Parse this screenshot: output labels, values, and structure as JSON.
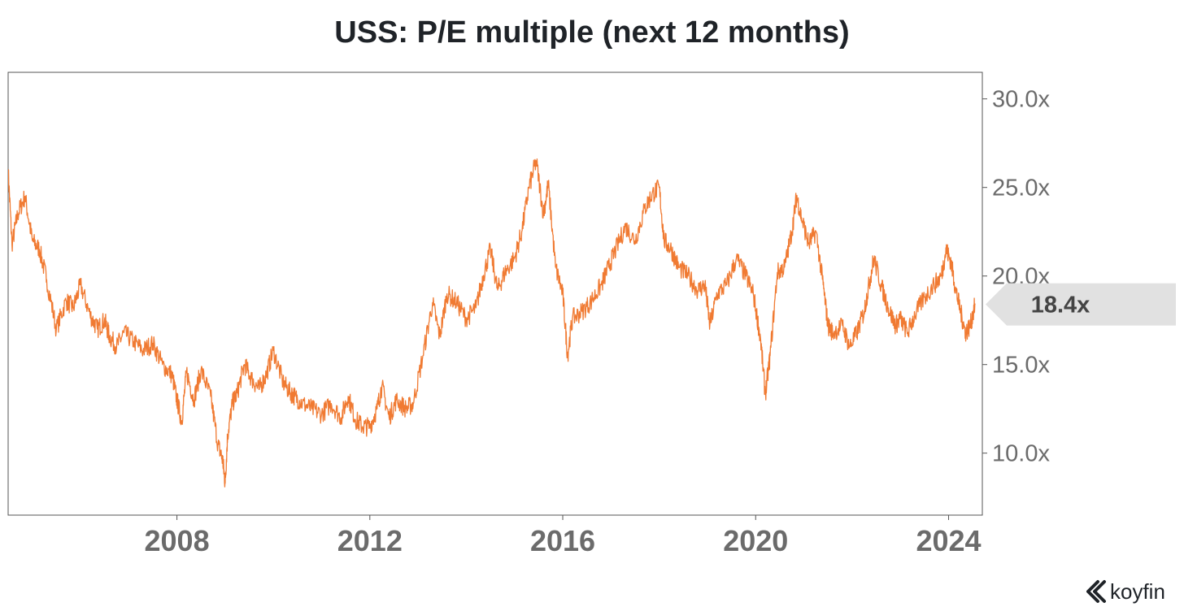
{
  "chart_data": {
    "type": "line",
    "title": "USS: P/E multiple (next 12 months)",
    "xlabel": "",
    "ylabel": "",
    "xlim": [
      2004.5,
      2024.7
    ],
    "ylim": [
      6.5,
      31.5
    ],
    "yticks": [
      10,
      15,
      20,
      25,
      30
    ],
    "ytick_labels": [
      "10.0x",
      "15.0x",
      "20.0x",
      "25.0x",
      "30.0x"
    ],
    "xticks": [
      2008,
      2012,
      2016,
      2020,
      2024
    ],
    "xtick_labels": [
      "2008",
      "2012",
      "2016",
      "2020",
      "2024"
    ],
    "grid": false,
    "last_value_label": "18.4x",
    "line_color": "#f07a32",
    "series": [
      {
        "x": [
          2004.5,
          2004.58,
          2004.7,
          2004.85,
          2005.0,
          2005.15,
          2005.3,
          2005.5,
          2005.7,
          2005.85,
          2006.0,
          2006.2,
          2006.35,
          2006.5,
          2006.6,
          2006.75,
          2006.9,
          2007.1,
          2007.3,
          2007.5,
          2007.7,
          2007.9,
          2008.0,
          2008.1,
          2008.2,
          2008.35,
          2008.5,
          2008.7,
          2008.85,
          2008.95,
          2009.0,
          2009.05,
          2009.15,
          2009.25,
          2009.4,
          2009.55,
          2009.7,
          2009.85,
          2010.0,
          2010.2,
          2010.35,
          2010.45,
          2010.6,
          2010.8,
          2011.0,
          2011.2,
          2011.4,
          2011.55,
          2011.7,
          2011.85,
          2012.0,
          2012.15,
          2012.25,
          2012.4,
          2012.55,
          2012.75,
          2012.9,
          2013.1,
          2013.3,
          2013.45,
          2013.6,
          2013.8,
          2014.0,
          2014.2,
          2014.35,
          2014.5,
          2014.65,
          2014.8,
          2015.0,
          2015.15,
          2015.3,
          2015.45,
          2015.6,
          2015.7,
          2015.85,
          2016.0,
          2016.1,
          2016.2,
          2016.4,
          2016.6,
          2016.8,
          2016.95,
          2017.1,
          2017.3,
          2017.5,
          2017.7,
          2017.85,
          2018.0,
          2018.1,
          2018.25,
          2018.4,
          2018.6,
          2018.8,
          2018.95,
          2019.05,
          2019.2,
          2019.4,
          2019.6,
          2019.8,
          2019.95,
          2020.1,
          2020.2,
          2020.3,
          2020.45,
          2020.6,
          2020.75,
          2020.85,
          2020.95,
          2021.1,
          2021.25,
          2021.4,
          2021.5,
          2021.6,
          2021.8,
          2021.95,
          2022.1,
          2022.25,
          2022.35,
          2022.45,
          2022.6,
          2022.75,
          2022.9,
          2023.0,
          2023.15,
          2023.3,
          2023.5,
          2023.7,
          2023.85,
          2023.95,
          2024.05,
          2024.15,
          2024.25,
          2024.35,
          2024.45,
          2024.55
        ],
        "values": [
          26.0,
          21.8,
          23.5,
          24.5,
          22.0,
          21.5,
          19.8,
          17.0,
          18.6,
          18.2,
          19.5,
          17.8,
          17.0,
          17.5,
          16.6,
          16.0,
          16.8,
          16.3,
          15.8,
          16.2,
          15.0,
          14.4,
          13.0,
          11.8,
          14.6,
          13.0,
          14.7,
          13.2,
          10.5,
          9.6,
          8.3,
          11.0,
          12.8,
          13.4,
          15.0,
          14.2,
          13.6,
          14.4,
          15.8,
          14.0,
          13.4,
          13.2,
          12.8,
          12.5,
          12.2,
          12.8,
          12.0,
          13.2,
          11.9,
          11.5,
          11.5,
          12.5,
          13.8,
          12.0,
          13.0,
          12.5,
          12.8,
          15.5,
          18.5,
          16.6,
          19.0,
          18.5,
          17.6,
          18.2,
          20.0,
          21.5,
          19.2,
          20.2,
          21.0,
          22.5,
          25.0,
          26.5,
          23.5,
          25.2,
          20.5,
          19.0,
          15.5,
          17.6,
          18.0,
          18.6,
          19.5,
          20.5,
          21.5,
          22.8,
          22.0,
          23.8,
          24.6,
          25.0,
          22.0,
          21.5,
          20.5,
          20.0,
          19.2,
          19.5,
          17.2,
          19.0,
          19.5,
          21.0,
          20.0,
          19.0,
          16.5,
          13.3,
          15.5,
          20.2,
          20.5,
          22.5,
          24.5,
          23.3,
          21.8,
          22.5,
          19.5,
          17.2,
          16.8,
          17.2,
          16.0,
          16.8,
          18.0,
          19.5,
          21.0,
          19.5,
          18.2,
          17.2,
          17.6,
          16.8,
          17.8,
          18.8,
          19.5,
          20.0,
          21.5,
          20.8,
          19.2,
          18.0,
          16.8,
          17.2,
          18.4
        ]
      }
    ]
  },
  "brand": {
    "name": "koyfin"
  }
}
